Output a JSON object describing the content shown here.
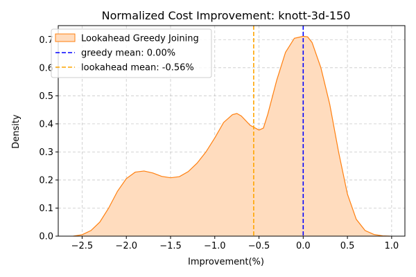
{
  "chart_data": {
    "type": "area",
    "title": "Normalized Cost Improvement: knott-3d-150",
    "xlabel": "Improvement(%)",
    "ylabel": "Density",
    "xlim": [
      -2.77,
      1.15
    ],
    "ylim": [
      0,
      0.75
    ],
    "xticks": [
      -2.5,
      -2.0,
      -1.5,
      -1.0,
      -0.5,
      0.0,
      0.5,
      1.0
    ],
    "xtick_labels": [
      "−2.5",
      "−2.0",
      "−1.5",
      "−1.0",
      "−0.5",
      "0.0",
      "0.5",
      "1.0"
    ],
    "yticks": [
      0.0,
      0.1,
      0.2,
      0.3,
      0.4,
      0.5,
      0.6,
      0.7
    ],
    "ytick_labels": [
      "0.0",
      "0.1",
      "0.2",
      "0.3",
      "0.4",
      "0.5",
      "0.6",
      "0.7"
    ],
    "grid": true,
    "legend_position": "top-left",
    "series": [
      {
        "name": "Lookahead Greedy Joining",
        "kind": "density-fill",
        "color": "#ff7f0e",
        "fill": "#ffdcbe",
        "x": [
          -2.6,
          -2.5,
          -2.4,
          -2.3,
          -2.2,
          -2.1,
          -2.0,
          -1.9,
          -1.8,
          -1.7,
          -1.6,
          -1.5,
          -1.4,
          -1.3,
          -1.2,
          -1.1,
          -1.0,
          -0.9,
          -0.8,
          -0.75,
          -0.7,
          -0.6,
          -0.5,
          -0.45,
          -0.4,
          -0.3,
          -0.2,
          -0.1,
          0.0,
          0.05,
          0.1,
          0.2,
          0.3,
          0.4,
          0.5,
          0.6,
          0.7,
          0.8,
          0.9,
          0.98
        ],
        "y": [
          0.0,
          0.005,
          0.02,
          0.05,
          0.1,
          0.16,
          0.205,
          0.228,
          0.232,
          0.225,
          0.213,
          0.208,
          0.212,
          0.23,
          0.26,
          0.3,
          0.35,
          0.405,
          0.433,
          0.437,
          0.428,
          0.395,
          0.378,
          0.385,
          0.435,
          0.555,
          0.655,
          0.705,
          0.712,
          0.71,
          0.69,
          0.6,
          0.47,
          0.3,
          0.15,
          0.06,
          0.02,
          0.006,
          0.001,
          0.0
        ]
      },
      {
        "name": "greedy mean: 0.00%",
        "kind": "vline",
        "x": 0.0,
        "color": "#0000ff",
        "style": "dashed"
      },
      {
        "name": "lookahead mean: -0.56%",
        "kind": "vline",
        "x": -0.56,
        "color": "#ffa500",
        "style": "dashed"
      }
    ]
  }
}
